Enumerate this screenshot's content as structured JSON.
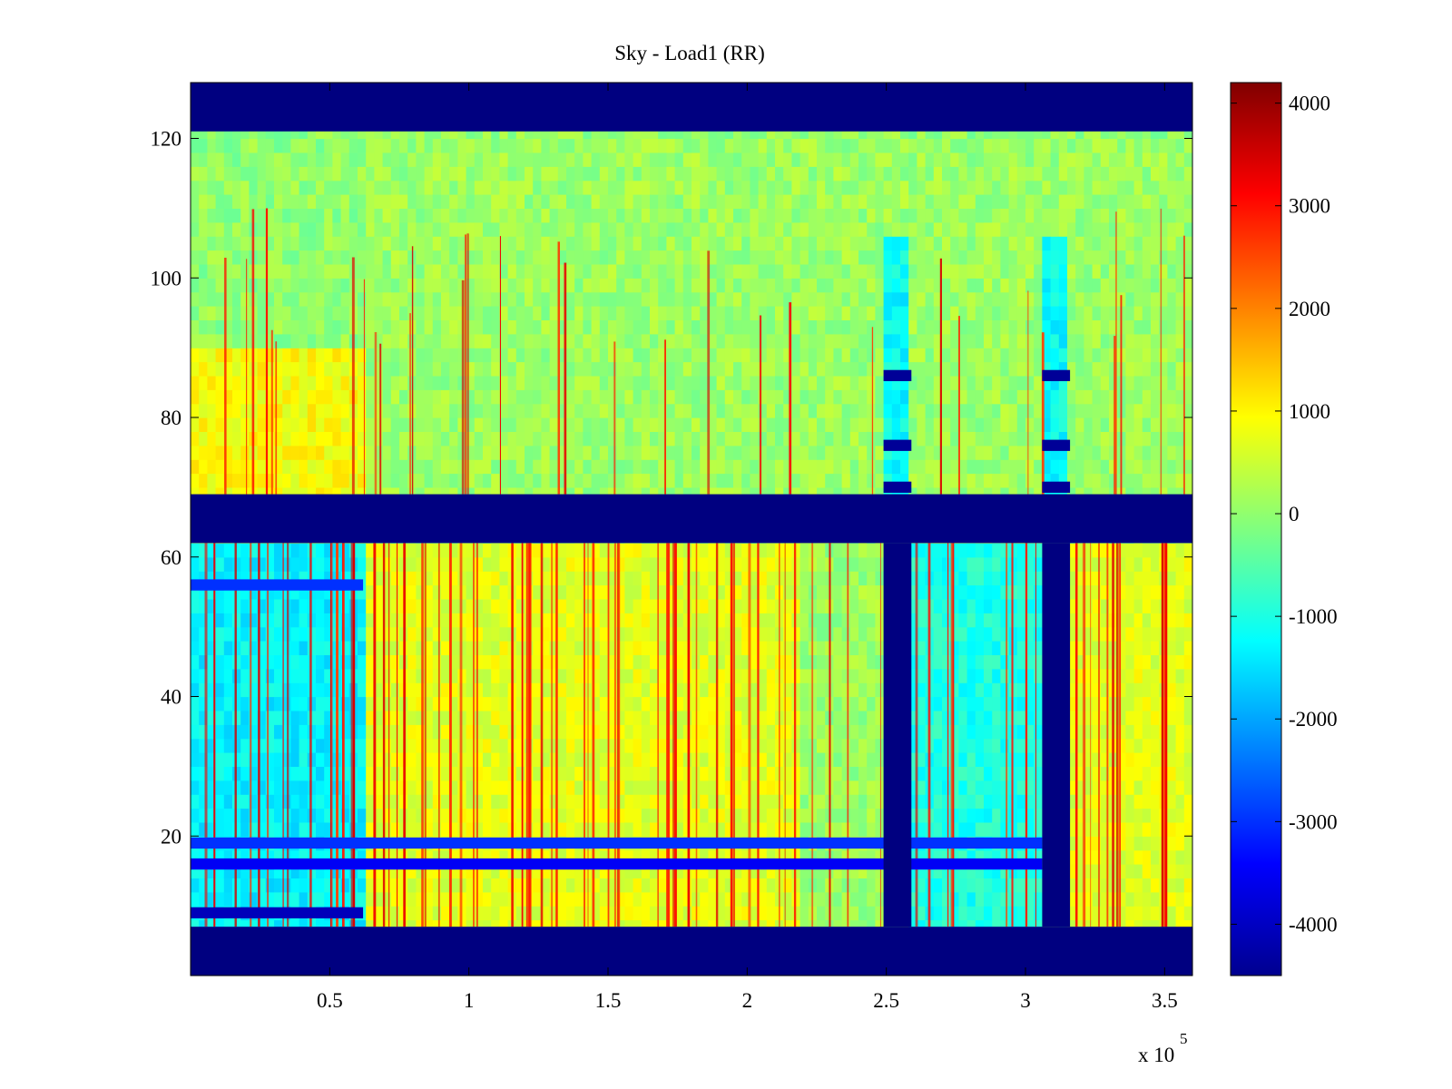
{
  "chart_data": {
    "type": "heatmap",
    "title": "Sky - Load1 (RR)",
    "xlabel": "",
    "ylabel": "",
    "x_exponent_label": "x 10",
    "x_exponent_power": "5",
    "x_scale_factor": 100000,
    "xlim": [
      0,
      3.6
    ],
    "ylim": [
      0,
      128
    ],
    "xticks": [
      {
        "value": 0.5,
        "label": "0.5"
      },
      {
        "value": 1,
        "label": "1"
      },
      {
        "value": 1.5,
        "label": "1.5"
      },
      {
        "value": 2,
        "label": "2"
      },
      {
        "value": 2.5,
        "label": "2.5"
      },
      {
        "value": 3,
        "label": "3"
      },
      {
        "value": 3.5,
        "label": "3.5"
      }
    ],
    "yticks": [
      {
        "value": 20,
        "label": "20"
      },
      {
        "value": 40,
        "label": "40"
      },
      {
        "value": 60,
        "label": "60"
      },
      {
        "value": 80,
        "label": "80"
      },
      {
        "value": 100,
        "label": "100"
      },
      {
        "value": 120,
        "label": "120"
      }
    ],
    "colorbar": {
      "colormap": "jet",
      "clim": [
        -4500,
        4200
      ],
      "ticks": [
        {
          "value": 4000,
          "label": "4000"
        },
        {
          "value": 3000,
          "label": "3000"
        },
        {
          "value": 2000,
          "label": "2000"
        },
        {
          "value": 1000,
          "label": "1000"
        },
        {
          "value": 0,
          "label": "0"
        },
        {
          "value": -1000,
          "label": "-1000"
        },
        {
          "value": -2000,
          "label": "-2000"
        },
        {
          "value": -3000,
          "label": "-3000"
        },
        {
          "value": -4000,
          "label": "-4000"
        }
      ]
    },
    "masked_value": -4500,
    "masked_row_bands": [
      [
        0,
        7
      ],
      [
        62,
        69
      ],
      [
        121,
        128
      ]
    ],
    "masked_column_bands": [
      {
        "x": [
          2.49,
          2.59
        ],
        "y": [
          7,
          62
        ]
      },
      {
        "x": [
          3.06,
          3.16
        ],
        "y": [
          7,
          62
        ]
      }
    ],
    "regions": [
      {
        "x": [
          0,
          0.62
        ],
        "y": [
          7,
          62
        ],
        "mean": -1300,
        "note": "lower rows, early times"
      },
      {
        "x": [
          0.62,
          2.2
        ],
        "y": [
          7,
          62
        ],
        "mean": 700
      },
      {
        "x": [
          2.2,
          2.49
        ],
        "y": [
          7,
          62
        ],
        "mean": 100
      },
      {
        "x": [
          2.59,
          3.06
        ],
        "y": [
          7,
          62
        ],
        "mean": -1000
      },
      {
        "x": [
          3.16,
          3.6
        ],
        "y": [
          7,
          62
        ],
        "mean": 700
      },
      {
        "x": [
          0,
          0.62
        ],
        "y": [
          69,
          90
        ],
        "mean": 900
      },
      {
        "x": [
          0.62,
          3.6
        ],
        "y": [
          69,
          121
        ],
        "mean": 100
      },
      {
        "x": [
          2.49,
          2.59
        ],
        "y": [
          69,
          107
        ],
        "mean": -1200
      },
      {
        "x": [
          3.06,
          3.16
        ],
        "y": [
          69,
          107
        ],
        "mean": -1200
      }
    ],
    "strong_rows": [
      {
        "y": 9,
        "x": [
          0,
          0.62
        ],
        "value": -4000
      },
      {
        "y": 16,
        "x": [
          0,
          3.06
        ],
        "value": -3500
      },
      {
        "y": 19,
        "x": [
          0,
          3.06
        ],
        "value": -3000
      },
      {
        "y": 56,
        "x": [
          0,
          0.62
        ],
        "value": -3000
      },
      {
        "y": 70,
        "x": [
          2.49,
          2.59
        ],
        "value": -4300
      },
      {
        "y": 76,
        "x": [
          2.49,
          2.59
        ],
        "value": -4300
      },
      {
        "y": 86,
        "x": [
          2.49,
          2.59
        ],
        "value": -4300
      },
      {
        "y": 70,
        "x": [
          3.06,
          3.16
        ],
        "value": -4300
      },
      {
        "y": 76,
        "x": [
          3.06,
          3.16
        ],
        "value": -4300
      },
      {
        "y": 86,
        "x": [
          3.06,
          3.16
        ],
        "value": -4300
      }
    ],
    "spike_value_range": [
      2500,
      3500
    ]
  }
}
